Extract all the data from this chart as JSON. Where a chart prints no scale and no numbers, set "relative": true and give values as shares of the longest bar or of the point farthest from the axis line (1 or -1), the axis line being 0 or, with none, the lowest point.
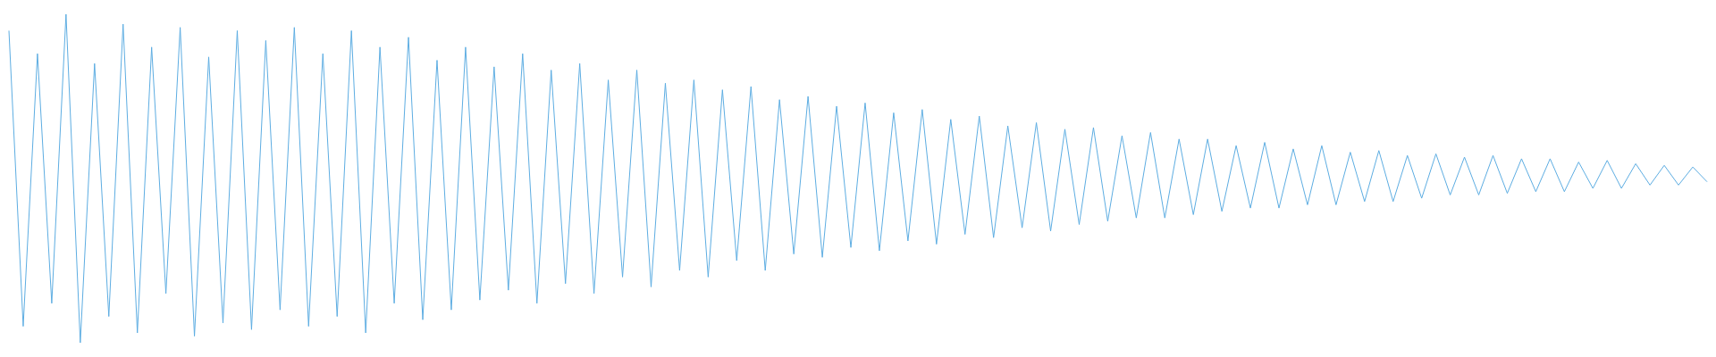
{
  "chart_data": {
    "type": "line",
    "relative": true,
    "categories": [
      null,
      null,
      null,
      null,
      null,
      null,
      null,
      null,
      null,
      null,
      null,
      null,
      null,
      null,
      null,
      null,
      null,
      null,
      null,
      null,
      null,
      null,
      null,
      null,
      null,
      null,
      null,
      null,
      null,
      null,
      null,
      null,
      null,
      null,
      null,
      null,
      null,
      null,
      null,
      null,
      null,
      null,
      null,
      null,
      null,
      null,
      null,
      null,
      null,
      null,
      null,
      null,
      null,
      null,
      null,
      null,
      null,
      null,
      null,
      null,
      null,
      null,
      null,
      null,
      null,
      null,
      null,
      null,
      null,
      null,
      null,
      null,
      null,
      null,
      null,
      null,
      null,
      null,
      null,
      null,
      null,
      null,
      null,
      null,
      null,
      null,
      null,
      null,
      null,
      null,
      null,
      null,
      null,
      null,
      null,
      null,
      null,
      null,
      null,
      null,
      null,
      null,
      null,
      null,
      null,
      null,
      null,
      null,
      null,
      null,
      null,
      null,
      null,
      null,
      null,
      null,
      null,
      null,
      null,
      null
    ],
    "series": [
      {
        "color": "#5dade2",
        "values": [
          0.95,
          0.05,
          0.88,
          0.12,
          1.0,
          0.0,
          0.85,
          0.08,
          0.97,
          0.03,
          0.9,
          0.15,
          0.96,
          0.02,
          0.87,
          0.06,
          0.95,
          0.04,
          0.92,
          0.1,
          0.96,
          0.05,
          0.88,
          0.08,
          0.95,
          0.03,
          0.9,
          0.12,
          0.93,
          0.07,
          0.86,
          0.1,
          0.9,
          0.13,
          0.84,
          0.16,
          0.88,
          0.12,
          0.83,
          0.18,
          0.85,
          0.15,
          0.8,
          0.2,
          0.83,
          0.17,
          0.79,
          0.22,
          0.8,
          0.2,
          0.77,
          0.25,
          0.78,
          0.22,
          0.74,
          0.27,
          0.75,
          0.26,
          0.72,
          0.29,
          0.73,
          0.28,
          0.7,
          0.31,
          0.71,
          0.3,
          0.68,
          0.33,
          0.69,
          0.32,
          0.66,
          0.35,
          0.67,
          0.34,
          0.65,
          0.36,
          0.655,
          0.37,
          0.63,
          0.38,
          0.64,
          0.38,
          0.62,
          0.39,
          0.62,
          0.4,
          0.6,
          0.41,
          0.61,
          0.41,
          0.59,
          0.42,
          0.6,
          0.42,
          0.58,
          0.43,
          0.585,
          0.43,
          0.57,
          0.44,
          0.575,
          0.45,
          0.565,
          0.45,
          0.57,
          0.455,
          0.56,
          0.46,
          0.56,
          0.46,
          0.55,
          0.47,
          0.555,
          0.47,
          0.545,
          0.48,
          0.54,
          0.48,
          0.535,
          0.49
        ]
      }
    ]
  }
}
